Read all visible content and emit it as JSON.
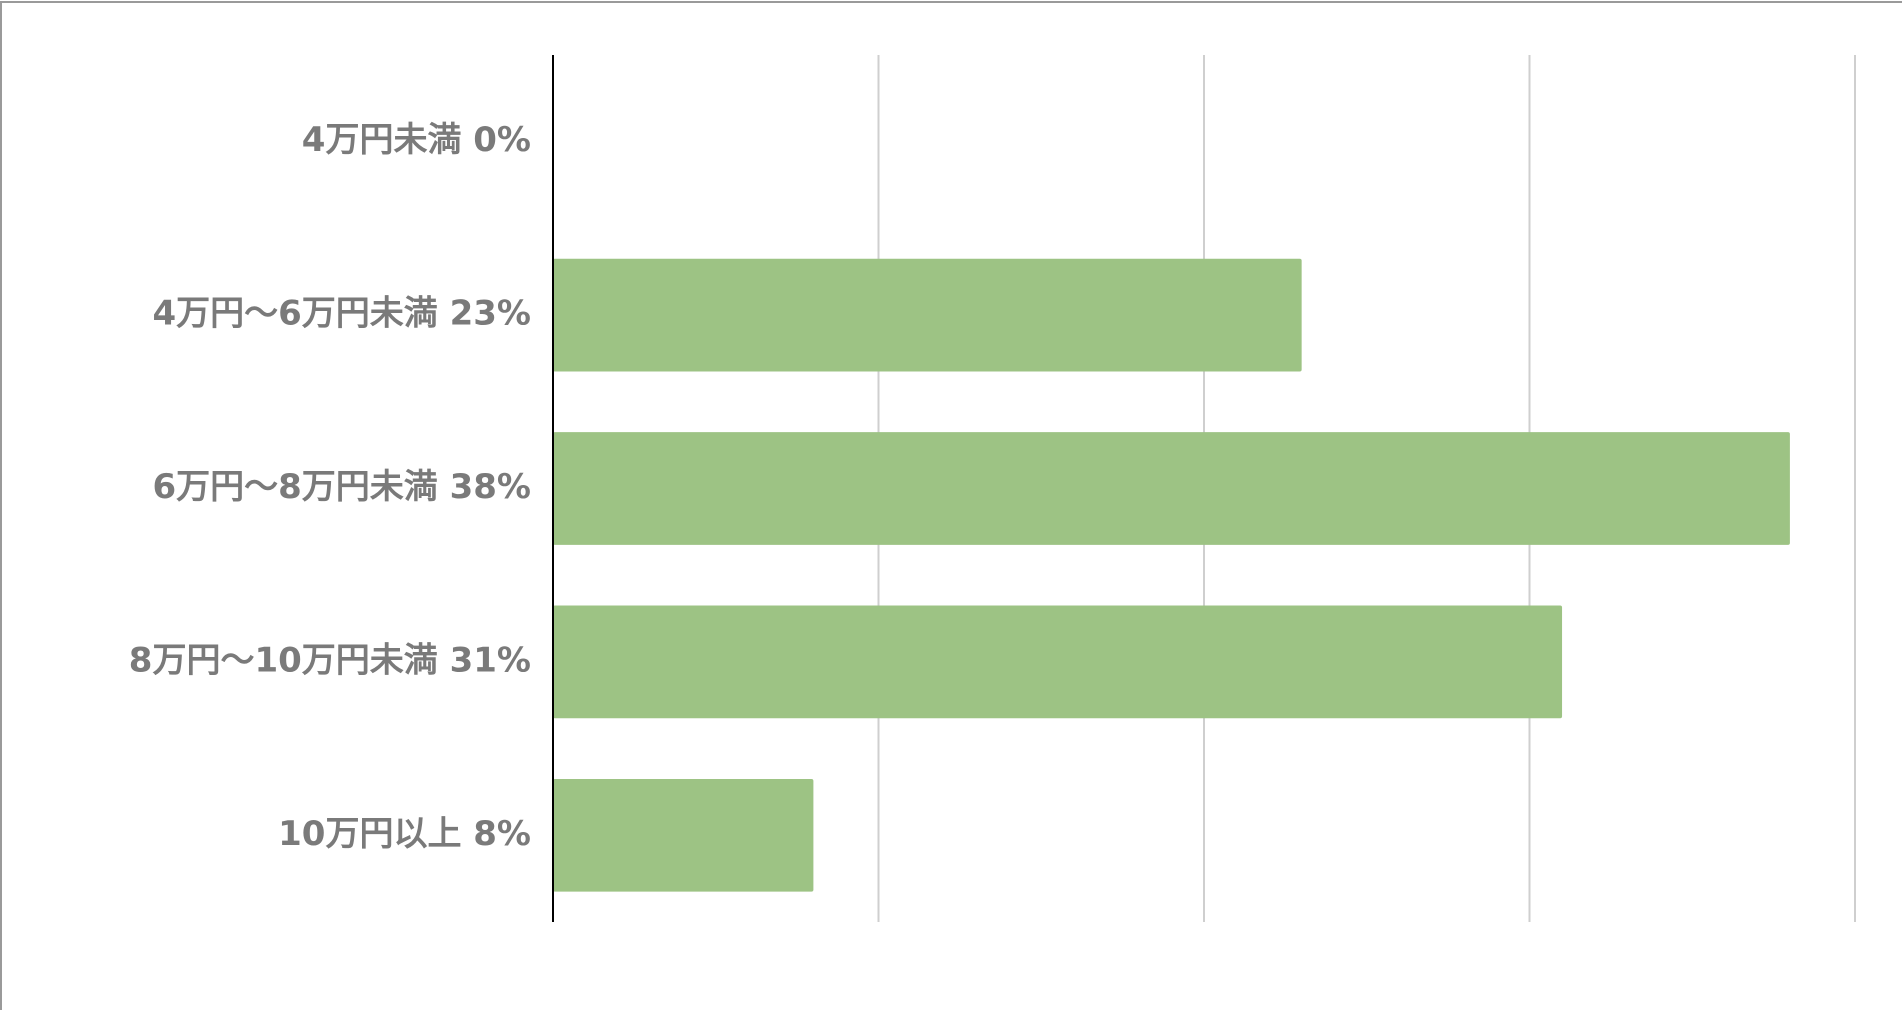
{
  "chart_data": {
    "type": "bar",
    "orientation": "horizontal",
    "categories": [
      "4万円未満 0%",
      "4万円〜6万円未満 23%",
      "6万円〜8万円未満 38%",
      "8万円〜10万円未満 31%",
      "10万円以上 8%"
    ],
    "values": [
      0,
      23,
      38,
      31,
      8
    ],
    "color": "#9dc384",
    "xlim": [
      0,
      40
    ],
    "xticks": [
      0,
      10,
      20,
      30,
      40
    ],
    "grid": true
  }
}
